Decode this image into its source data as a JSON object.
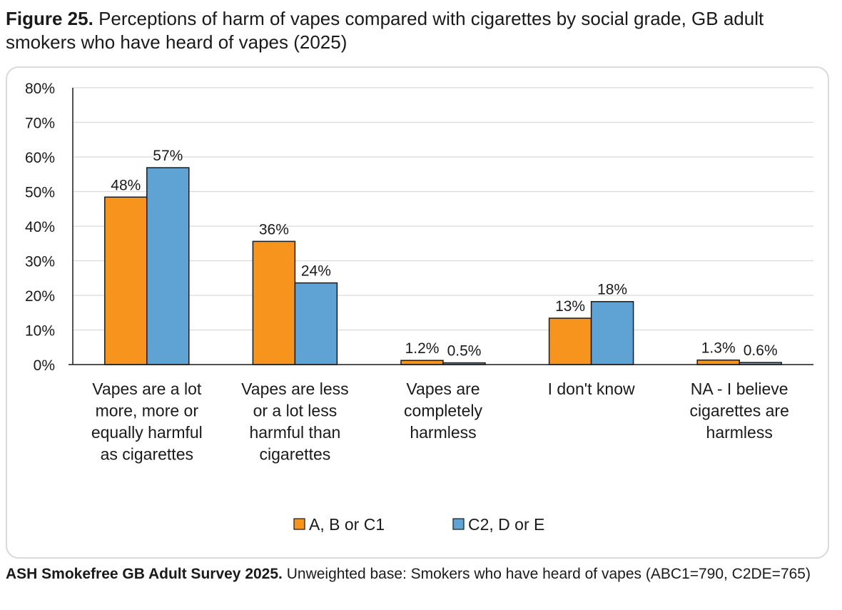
{
  "header": {
    "figure_label": "Figure 25.",
    "title": "Perceptions of harm of vapes compared with cigarettes by social grade, GB adult smokers who have heard of vapes (2025)"
  },
  "footer": {
    "source_bold": "ASH Smokefree GB Adult Survey 2025.",
    "source_text": "Unweighted base: Smokers who have heard of vapes (ABC1=790, C2DE=765)"
  },
  "chart_data": {
    "type": "bar",
    "title": "",
    "xlabel": "",
    "ylabel": "",
    "ylim": [
      0,
      80
    ],
    "y_ticks": [
      "0%",
      "10%",
      "20%",
      "30%",
      "40%",
      "50%",
      "60%",
      "70%",
      "80%"
    ],
    "grid": true,
    "legend_position": "bottom",
    "categories": [
      [
        "Vapes are a lot",
        "more, more or",
        "equally harmful",
        "as cigarettes"
      ],
      [
        "Vapes are less",
        "or a lot less",
        "harmful than",
        "cigarettes"
      ],
      [
        "Vapes are",
        "completely",
        "harmless"
      ],
      [
        "I don't know"
      ],
      [
        "NA - I believe",
        "cigarettes are",
        "harmless"
      ]
    ],
    "series": [
      {
        "name": "A, B or C1",
        "color": "#F7941D",
        "values": [
          48.4,
          35.6,
          1.2,
          13.4,
          1.3
        ],
        "labels": [
          "48%",
          "36%",
          "1.2%",
          "13%",
          "1.3%"
        ]
      },
      {
        "name": "C2, D or E",
        "color": "#5FA2D4",
        "values": [
          56.9,
          23.6,
          0.5,
          18.2,
          0.6
        ],
        "labels": [
          "57%",
          "24%",
          "0.5%",
          "18%",
          "0.6%"
        ]
      }
    ]
  }
}
